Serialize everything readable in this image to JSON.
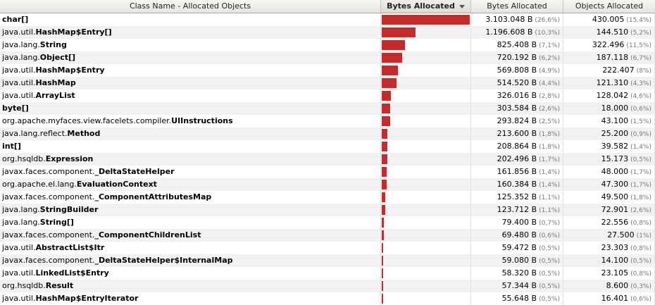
{
  "header": {
    "col_class": "Class Name - Allocated Objects",
    "col_bar": "Bytes Allocated",
    "col_bytes": "Bytes Allocated",
    "col_objects": "Objects Allocated",
    "sort_icon": "sort-descending-icon"
  },
  "colors": {
    "bar": "#c62b2b",
    "header_bg": "#e6e5e0",
    "alt_row": "#f2f2f2"
  },
  "rows": [
    {
      "pkg": "",
      "cls": "char[]",
      "bytes": "3.103.048 B",
      "bytes_pct": "(26,6%)",
      "objects": "430.005",
      "objects_pct": "(15,4%)",
      "share": 26.6
    },
    {
      "pkg": "java.util.",
      "cls": "HashMap$Entry[]",
      "bytes": "1.196.608 B",
      "bytes_pct": "(10,3%)",
      "objects": "144.510",
      "objects_pct": "(5,2%)",
      "share": 10.3
    },
    {
      "pkg": "java.lang.",
      "cls": "String",
      "bytes": "825.408 B",
      "bytes_pct": "(7,1%)",
      "objects": "322.496",
      "objects_pct": "(11,5%)",
      "share": 7.1
    },
    {
      "pkg": "java.lang.",
      "cls": "Object[]",
      "bytes": "720.192 B",
      "bytes_pct": "(6,2%)",
      "objects": "187.118",
      "objects_pct": "(6,7%)",
      "share": 6.2
    },
    {
      "pkg": "java.util.",
      "cls": "HashMap$Entry",
      "bytes": "569.808 B",
      "bytes_pct": "(4,9%)",
      "objects": "222.407",
      "objects_pct": "(8%)",
      "share": 4.9
    },
    {
      "pkg": "java.util.",
      "cls": "HashMap",
      "bytes": "514.520 B",
      "bytes_pct": "(4,4%)",
      "objects": "121.310",
      "objects_pct": "(4,3%)",
      "share": 4.4
    },
    {
      "pkg": "java.util.",
      "cls": "ArrayList",
      "bytes": "326.016 B",
      "bytes_pct": "(2,8%)",
      "objects": "128.042",
      "objects_pct": "(4,6%)",
      "share": 2.8
    },
    {
      "pkg": "",
      "cls": "byte[]",
      "bytes": "303.584 B",
      "bytes_pct": "(2,6%)",
      "objects": "18.000",
      "objects_pct": "(0,6%)",
      "share": 2.6
    },
    {
      "pkg": "org.apache.myfaces.view.facelets.compiler.",
      "cls": "UIInstructions",
      "bytes": "293.824 B",
      "bytes_pct": "(2,5%)",
      "objects": "43.100",
      "objects_pct": "(1,5%)",
      "share": 2.5
    },
    {
      "pkg": "java.lang.reflect.",
      "cls": "Method",
      "bytes": "213.600 B",
      "bytes_pct": "(1,8%)",
      "objects": "25.200",
      "objects_pct": "(0,9%)",
      "share": 1.8
    },
    {
      "pkg": "",
      "cls": "int[]",
      "bytes": "208.864 B",
      "bytes_pct": "(1,8%)",
      "objects": "39.582",
      "objects_pct": "(1,4%)",
      "share": 1.8
    },
    {
      "pkg": "org.hsqldb.",
      "cls": "Expression",
      "bytes": "202.496 B",
      "bytes_pct": "(1,7%)",
      "objects": "15.173",
      "objects_pct": "(0,5%)",
      "share": 1.7
    },
    {
      "pkg": "javax.faces.component.",
      "cls": "_DeltaStateHelper",
      "bytes": "161.856 B",
      "bytes_pct": "(1,4%)",
      "objects": "48.000",
      "objects_pct": "(1,7%)",
      "share": 1.4
    },
    {
      "pkg": "org.apache.el.lang.",
      "cls": "EvaluationContext",
      "bytes": "160.384 B",
      "bytes_pct": "(1,4%)",
      "objects": "47.300",
      "objects_pct": "(1,7%)",
      "share": 1.4
    },
    {
      "pkg": "javax.faces.component.",
      "cls": "_ComponentAttributesMap",
      "bytes": "125.352 B",
      "bytes_pct": "(1,1%)",
      "objects": "49.500",
      "objects_pct": "(1,8%)",
      "share": 1.1
    },
    {
      "pkg": "java.lang.",
      "cls": "StringBuilder",
      "bytes": "123.712 B",
      "bytes_pct": "(1,1%)",
      "objects": "72.901",
      "objects_pct": "(2,6%)",
      "share": 1.1
    },
    {
      "pkg": "java.lang.",
      "cls": "String[]",
      "bytes": "79.400 B",
      "bytes_pct": "(0,7%)",
      "objects": "22.556",
      "objects_pct": "(0,8%)",
      "share": 0.7
    },
    {
      "pkg": "javax.faces.component.",
      "cls": "_ComponentChildrenList",
      "bytes": "69.480 B",
      "bytes_pct": "(0,6%)",
      "objects": "27.500",
      "objects_pct": "(1%)",
      "share": 0.6
    },
    {
      "pkg": "java.util.",
      "cls": "AbstractList$Itr",
      "bytes": "59.472 B",
      "bytes_pct": "(0,5%)",
      "objects": "23.303",
      "objects_pct": "(0,8%)",
      "share": 0.5
    },
    {
      "pkg": "javax.faces.component.",
      "cls": "_DeltaStateHelper$InternalMap",
      "bytes": "59.080 B",
      "bytes_pct": "(0,5%)",
      "objects": "14.100",
      "objects_pct": "(0,5%)",
      "share": 0.5
    },
    {
      "pkg": "java.util.",
      "cls": "LinkedList$Entry",
      "bytes": "58.320 B",
      "bytes_pct": "(0,5%)",
      "objects": "23.105",
      "objects_pct": "(0,8%)",
      "share": 0.5
    },
    {
      "pkg": "org.hsqldb.",
      "cls": "Result",
      "bytes": "57.344 B",
      "bytes_pct": "(0,5%)",
      "objects": "8.600",
      "objects_pct": "(0,3%)",
      "share": 0.5
    },
    {
      "pkg": "java.util.",
      "cls": "HashMap$EntryIterator",
      "bytes": "55.648 B",
      "bytes_pct": "(0,5%)",
      "objects": "16.401",
      "objects_pct": "(0,6%)",
      "share": 0.5
    }
  ]
}
